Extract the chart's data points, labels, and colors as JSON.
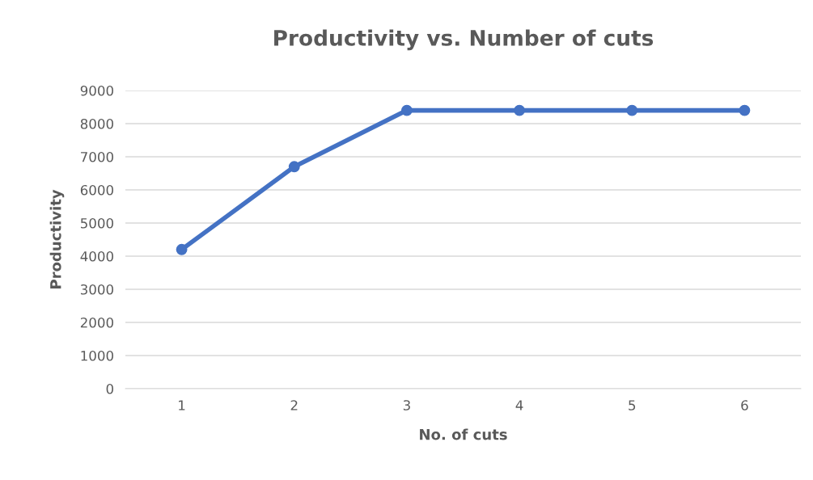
{
  "chart_data": {
    "type": "line",
    "title": "Productivity vs. Number of cuts",
    "xlabel": "No. of cuts",
    "ylabel": "Productivity",
    "categories": [
      "1",
      "2",
      "3",
      "4",
      "5",
      "6"
    ],
    "series": [
      {
        "color": "#4472c4",
        "values": [
          4200,
          6700,
          8400,
          8400,
          8400,
          8400
        ]
      }
    ],
    "ylim": [
      0,
      9000
    ],
    "yticks": [
      0,
      1000,
      2000,
      3000,
      4000,
      5000,
      6000,
      7000,
      8000,
      9000
    ],
    "grid": "y",
    "marker": "circle",
    "line_style": "solid"
  }
}
